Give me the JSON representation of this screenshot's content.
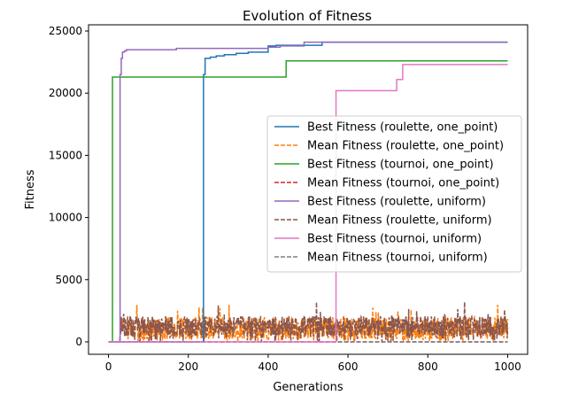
{
  "chart_data": {
    "type": "line",
    "title": "Evolution of Fitness",
    "xlabel": "Generations",
    "ylabel": "Fitness",
    "xlim": [
      -50,
      1050
    ],
    "ylim": [
      -1000,
      25500
    ],
    "xticks": [
      0,
      200,
      400,
      600,
      800,
      1000
    ],
    "yticks": [
      0,
      5000,
      10000,
      15000,
      20000,
      25000
    ],
    "grid": false,
    "legend_position": "center-right",
    "series": [
      {
        "name": "Best Fitness (roulette, one_point)",
        "color": "#1f77b4",
        "style": "solid",
        "steps": [
          [
            0,
            0
          ],
          [
            238,
            0
          ],
          [
            238,
            21500
          ],
          [
            242,
            22800
          ],
          [
            255,
            22900
          ],
          [
            270,
            23000
          ],
          [
            290,
            23100
          ],
          [
            320,
            23200
          ],
          [
            350,
            23300
          ],
          [
            400,
            23300
          ],
          [
            400,
            23800
          ],
          [
            420,
            23850
          ],
          [
            450,
            23850
          ],
          [
            480,
            23850
          ],
          [
            535,
            23900
          ],
          [
            535,
            24100
          ],
          [
            1000,
            24100
          ]
        ]
      },
      {
        "name": "Mean Fitness (roulette, one_point)",
        "color": "#ff7f0e",
        "style": "dashed",
        "noise": {
          "start": 30,
          "end": 1000,
          "base": 1100,
          "amp": 900,
          "seed": 7
        }
      },
      {
        "name": "Best Fitness (tournoi, one_point)",
        "color": "#2ca02c",
        "style": "solid",
        "steps": [
          [
            0,
            0
          ],
          [
            8,
            0
          ],
          [
            10,
            21300
          ],
          [
            440,
            21300
          ],
          [
            445,
            22600
          ],
          [
            1000,
            22600
          ]
        ]
      },
      {
        "name": "Mean Fitness (tournoi, one_point)",
        "color": "#d62728",
        "style": "dashed",
        "steps": [
          [
            0,
            0
          ],
          [
            1000,
            0
          ]
        ]
      },
      {
        "name": "Best Fitness (roulette, uniform)",
        "color": "#9467bd",
        "style": "solid",
        "steps": [
          [
            0,
            0
          ],
          [
            26,
            0
          ],
          [
            29,
            21500
          ],
          [
            32,
            22800
          ],
          [
            35,
            23300
          ],
          [
            40,
            23400
          ],
          [
            45,
            23500
          ],
          [
            170,
            23600
          ],
          [
            400,
            23700
          ],
          [
            430,
            23800
          ],
          [
            490,
            24100
          ],
          [
            1000,
            24100
          ]
        ]
      },
      {
        "name": "Mean Fitness (roulette, uniform)",
        "color": "#8c564b",
        "style": "dashed",
        "noise": {
          "start": 30,
          "end": 1000,
          "base": 1250,
          "amp": 850,
          "seed": 13
        }
      },
      {
        "name": "Best Fitness (tournoi, uniform)",
        "color": "#e377c2",
        "style": "solid",
        "steps": [
          [
            0,
            0
          ],
          [
            570,
            0
          ],
          [
            570,
            20200
          ],
          [
            722,
            20200
          ],
          [
            722,
            21100
          ],
          [
            735,
            21100
          ],
          [
            737,
            22300
          ],
          [
            1000,
            22300
          ]
        ]
      },
      {
        "name": "Mean Fitness (tournoi, uniform)",
        "color": "#7f7f7f",
        "style": "dashed",
        "steps": [
          [
            0,
            0
          ],
          [
            1000,
            0
          ]
        ]
      }
    ]
  }
}
